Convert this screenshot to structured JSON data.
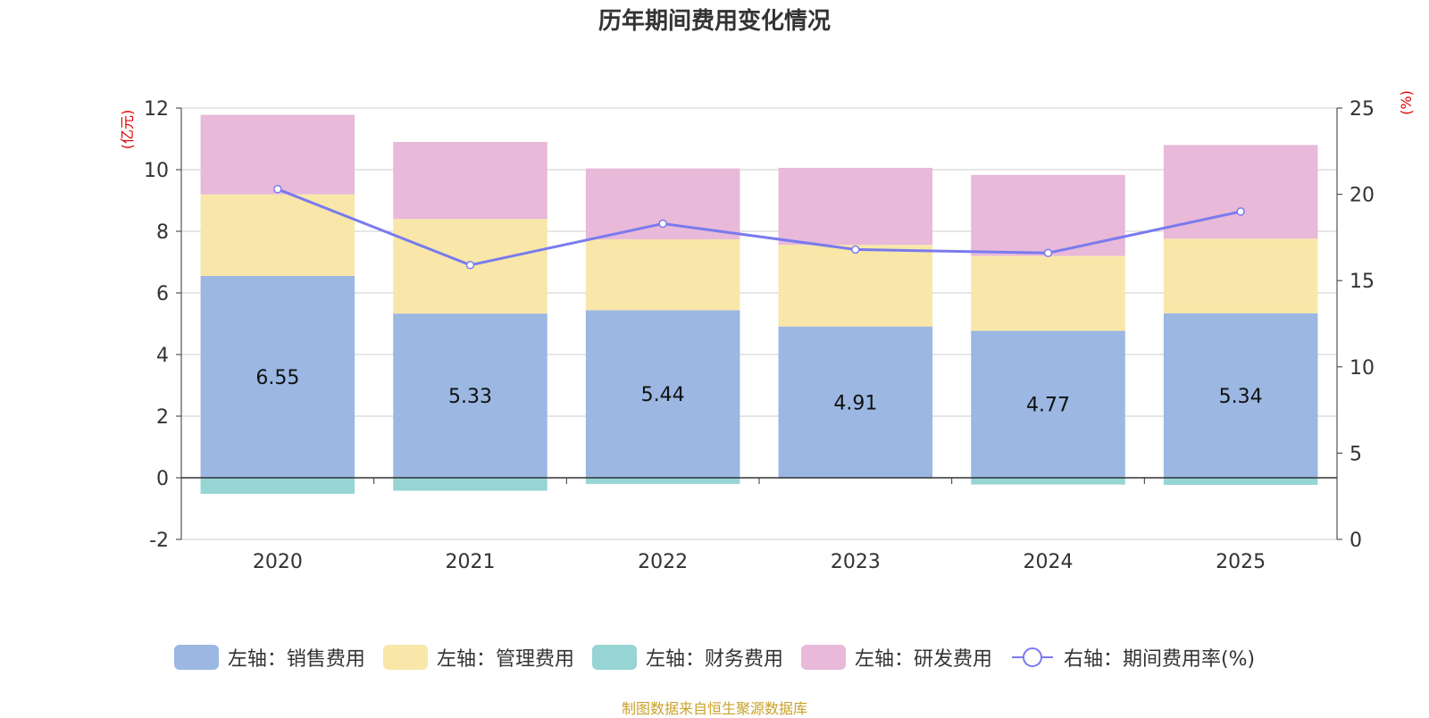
{
  "chart_data": {
    "type": "bar",
    "title": "历年期间费用变化情况",
    "categories": [
      "2020",
      "2021",
      "2022",
      "2023",
      "2024",
      "2025"
    ],
    "stacked": true,
    "left_axis": {
      "label": "(亿元)",
      "min": -2,
      "max": 12,
      "ticks": [
        -2,
        0,
        2,
        4,
        6,
        8,
        10,
        12
      ]
    },
    "right_axis": {
      "label": "(%)",
      "min": 0,
      "max": 25,
      "ticks": [
        0,
        5,
        10,
        15,
        20,
        25
      ]
    },
    "series": [
      {
        "name": "左轴：销售费用",
        "kind": "bar",
        "color": "#9bb7e2",
        "show_labels": true,
        "values": [
          6.55,
          5.33,
          5.44,
          4.91,
          4.77,
          5.34
        ]
      },
      {
        "name": "左轴：管理费用",
        "kind": "bar",
        "color": "#f8e7a8",
        "show_labels": false,
        "values": [
          2.65,
          3.07,
          2.3,
          2.65,
          2.43,
          2.42
        ]
      },
      {
        "name": "左轴：财务费用",
        "kind": "bar",
        "color": "#97d4d4",
        "show_labels": false,
        "values": [
          -0.52,
          -0.42,
          -0.2,
          -0.02,
          -0.22,
          -0.23
        ]
      },
      {
        "name": "左轴：研发费用",
        "kind": "bar",
        "color": "#e8b9d9",
        "show_labels": false,
        "values": [
          2.58,
          2.5,
          2.3,
          2.5,
          2.63,
          3.04
        ]
      },
      {
        "name": "右轴：期间费用率(%)",
        "kind": "line",
        "color": "#7a7aee",
        "show_labels": false,
        "values": [
          20.3,
          15.9,
          18.3,
          16.8,
          16.6,
          19.0
        ]
      }
    ],
    "grid": true,
    "legend_position": "bottom"
  },
  "source_note": "制图数据来自恒生聚源数据库",
  "colors": {
    "axis_label": "#e00000",
    "grid": "#cccccc",
    "text": "#333333"
  }
}
